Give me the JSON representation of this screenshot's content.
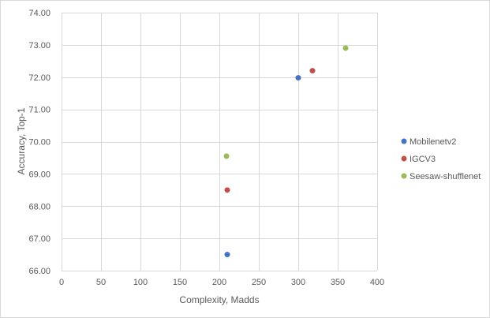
{
  "chart_data": {
    "type": "scatter",
    "title": "",
    "xlabel": "Complexity, Madds",
    "ylabel": "Accuracy, Top-1",
    "xlim": [
      0,
      400
    ],
    "ylim": [
      66,
      74
    ],
    "x_ticks": [
      "0",
      "50",
      "100",
      "150",
      "200",
      "250",
      "300",
      "350",
      "400"
    ],
    "y_ticks": [
      "66.00",
      "67.00",
      "68.00",
      "69.00",
      "70.00",
      "71.00",
      "72.00",
      "73.00",
      "74.00"
    ],
    "grid": true,
    "legend_position": "right",
    "series": [
      {
        "name": "Mobilenetv2",
        "color": "#4472c4",
        "points": [
          {
            "x": 210,
            "y": 66.5
          },
          {
            "x": 300,
            "y": 71.98
          }
        ]
      },
      {
        "name": "IGCV3",
        "color": "#c0504d",
        "points": [
          {
            "x": 210,
            "y": 68.5
          },
          {
            "x": 318,
            "y": 72.2
          }
        ]
      },
      {
        "name": "Seesaw-shufflenet",
        "color": "#9bbb59",
        "points": [
          {
            "x": 209,
            "y": 69.55
          },
          {
            "x": 360,
            "y": 72.9
          }
        ]
      }
    ]
  }
}
